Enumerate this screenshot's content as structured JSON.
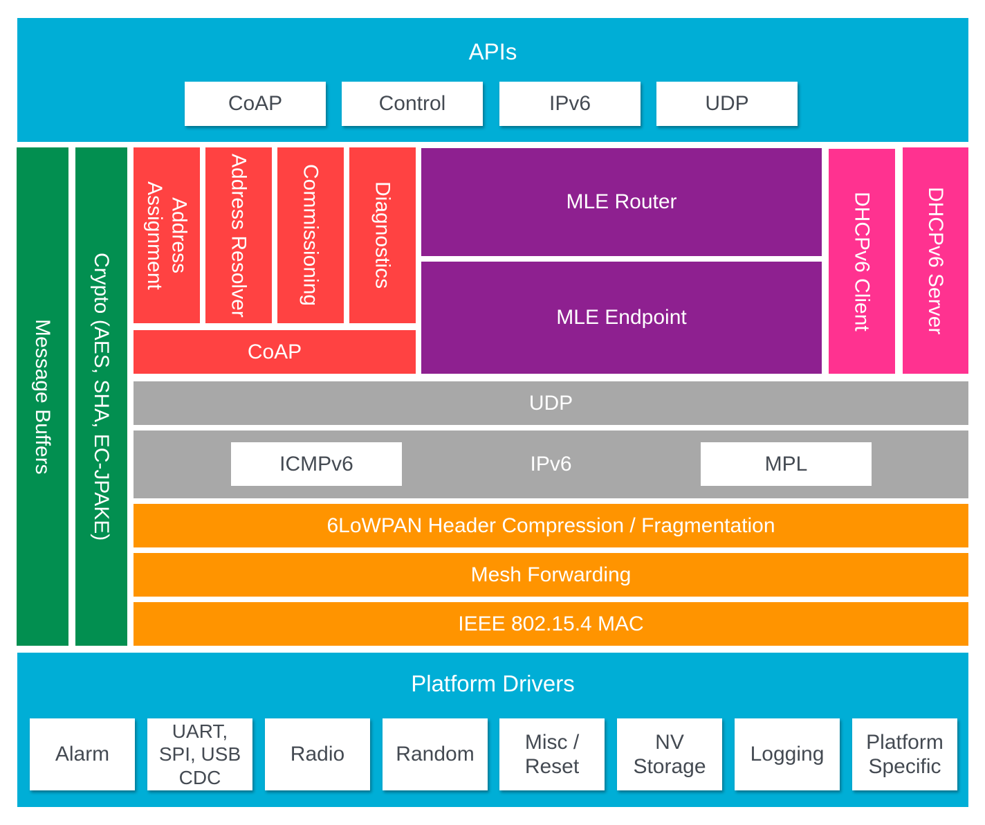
{
  "colors": {
    "api_band": "#00AED6",
    "memory_crypto": "#028F50",
    "coap_services": "#FF4242",
    "mle": "#8E2090",
    "dhcp": "#FF3290",
    "network": "#A8A8A8",
    "link": "#FF9400",
    "box_text": "#444A52"
  },
  "apis": {
    "title": "APIs",
    "items": [
      "CoAP",
      "Control",
      "IPv6",
      "UDP"
    ]
  },
  "side": {
    "message_buffers": "Message Buffers",
    "crypto": "Crypto (AES, SHA, EC-JPAKE)"
  },
  "services": {
    "address_assignment": "Address Assignment",
    "address_resolver": "Address Resolver",
    "commissioning": "Commissioning",
    "diagnostics": "Diagnostics",
    "coap": "CoAP"
  },
  "mle": {
    "router": "MLE Router",
    "endpoint": "MLE Endpoint"
  },
  "dhcp": {
    "client": "DHCPv6 Client",
    "server": "DHCPv6 Server"
  },
  "network": {
    "udp": "UDP",
    "ipv6": "IPv6",
    "icmpv6": "ICMPv6",
    "mpl": "MPL"
  },
  "link": {
    "sixlowpan": "6LoWPAN Header Compression / Fragmentation",
    "mesh": "Mesh Forwarding",
    "mac": "IEEE 802.15.4 MAC"
  },
  "platform": {
    "title": "Platform Drivers",
    "items": [
      "Alarm",
      "UART, SPI, USB CDC",
      "Radio",
      "Random",
      "Misc / Reset",
      "NV Storage",
      "Logging",
      "Platform Specific"
    ]
  }
}
